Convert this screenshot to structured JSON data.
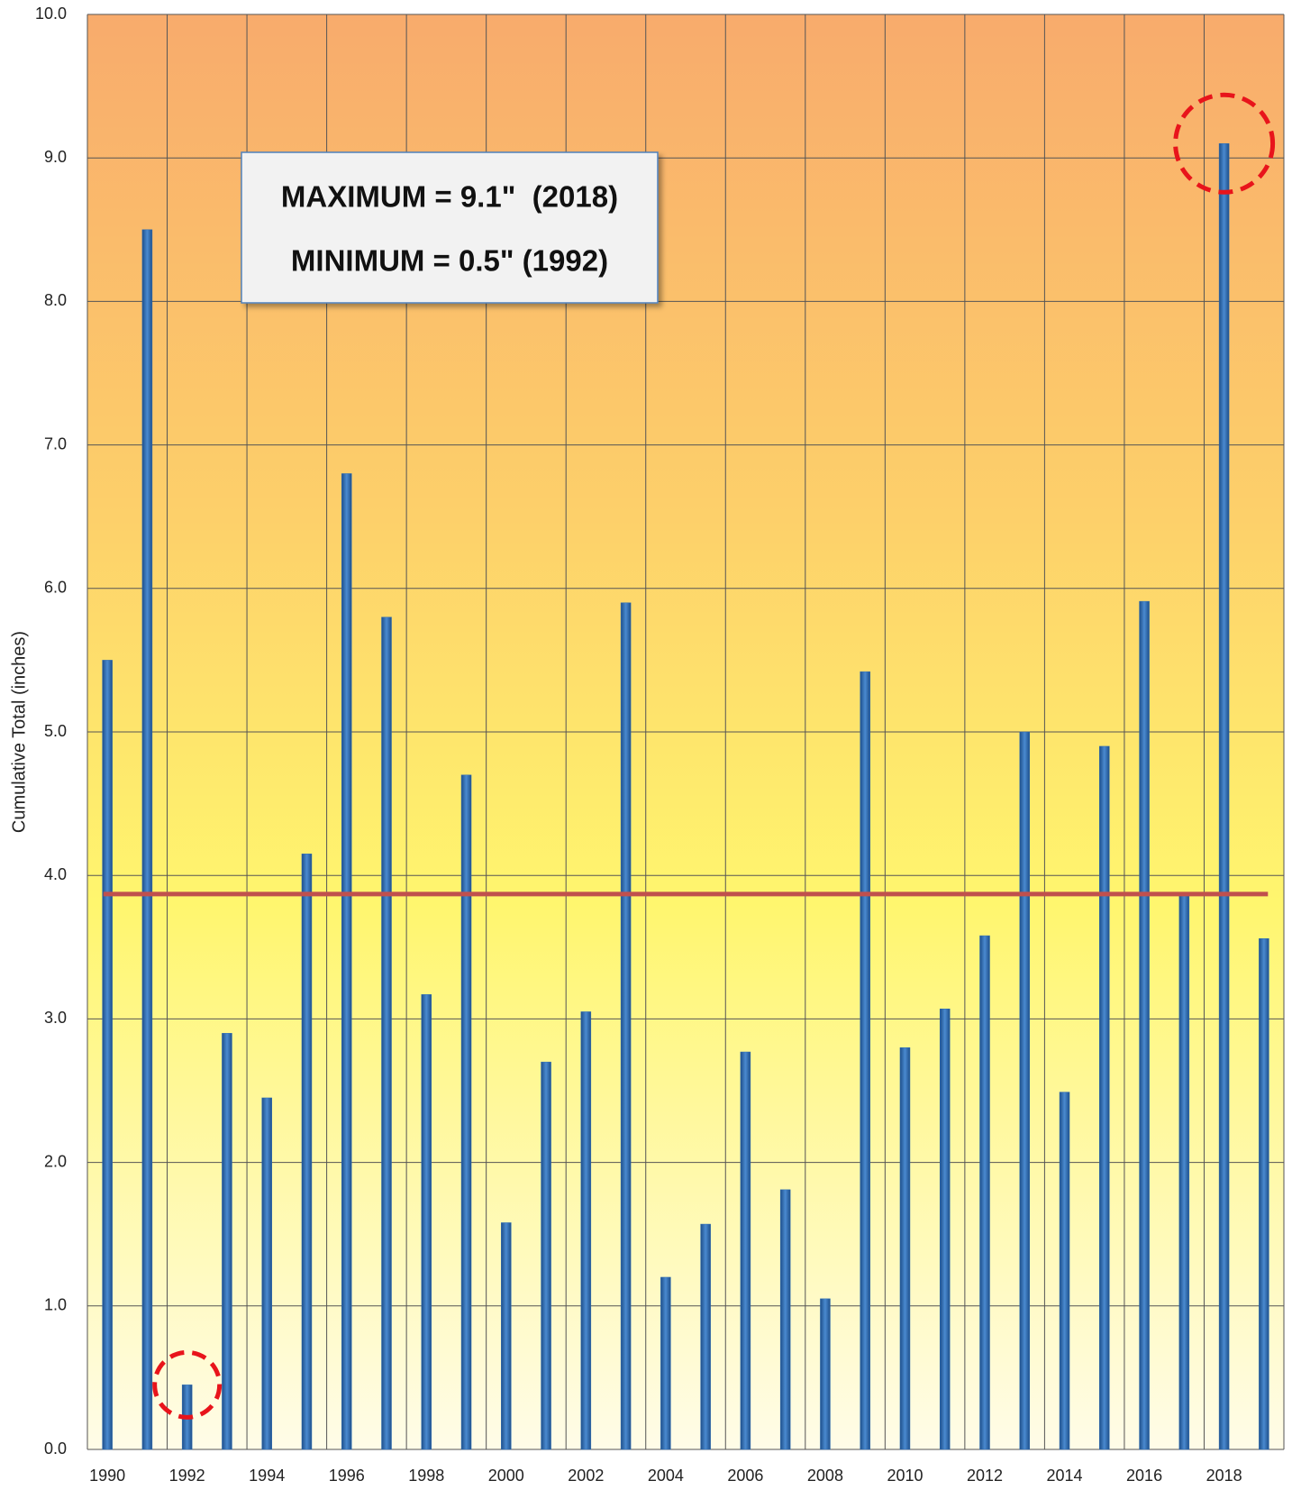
{
  "chart_data": {
    "type": "bar",
    "y_axis_label": "Cumulative Total (inches)",
    "annotations": [
      "MAXIMUM = 9.1\"  (2018)",
      "MINIMUM = 0.5\" (1992)"
    ],
    "categories": [
      "1990",
      null,
      "1992",
      null,
      "1994",
      null,
      "1996",
      null,
      "1998",
      null,
      "2000",
      null,
      "2002",
      null,
      "2004",
      null,
      "2006",
      null,
      "2008",
      null,
      "2010",
      null,
      "2012",
      null,
      "2014",
      null,
      "2016",
      null,
      "2018",
      null
    ],
    "values": [
      5.5,
      8.5,
      0.45,
      2.9,
      2.45,
      4.15,
      6.8,
      5.8,
      3.17,
      4.7,
      1.58,
      2.7,
      3.05,
      5.9,
      1.2,
      1.57,
      2.77,
      1.81,
      1.05,
      5.42,
      2.8,
      3.07,
      3.58,
      5.0,
      2.49,
      4.9,
      5.91,
      3.87,
      9.1,
      3.56
    ],
    "color": "#2f6db3",
    "average_line": 3.87,
    "average_color": "#c0504d",
    "ylim": [
      0,
      10
    ],
    "yticks": [
      {
        "value": 0,
        "label": "0.0"
      },
      {
        "value": 1,
        "label": "1.0"
      },
      {
        "value": 2,
        "label": "2.0"
      },
      {
        "value": 3,
        "label": "3.0"
      },
      {
        "value": 4,
        "label": "4.0"
      },
      {
        "value": 5,
        "label": "5.0"
      },
      {
        "value": 6,
        "label": "6.0"
      },
      {
        "value": 7,
        "label": "7.0"
      },
      {
        "value": 8,
        "label": "8.0"
      },
      {
        "value": 9,
        "label": "9.0"
      },
      {
        "value": 10,
        "label": "10.0"
      }
    ],
    "grid": true
  }
}
